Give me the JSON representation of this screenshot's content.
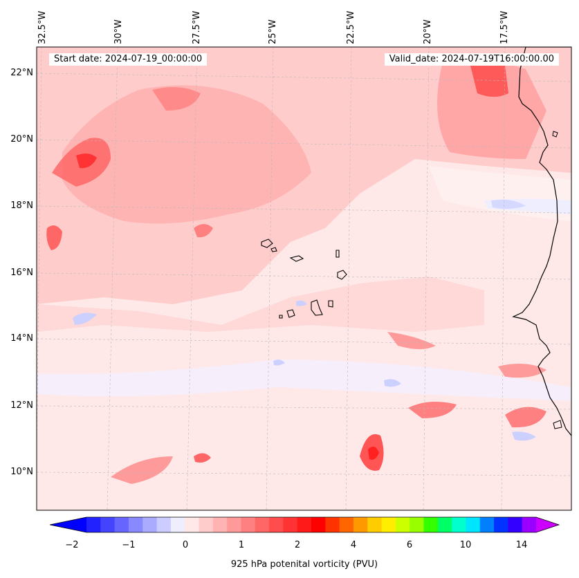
{
  "header": {
    "start_date": "Start date: 2024-07-19_00:00:00",
    "valid_date": "Valid_date: 2024-07-19T16:00:00.00"
  },
  "map": {
    "region": "Eastern tropical Atlantic off West Africa",
    "lon_labels": [
      "32.5°W",
      "30°W",
      "27.5°W",
      "25°W",
      "22.5°W",
      "20°W",
      "17.5°W"
    ],
    "lat_labels": [
      "22°N",
      "20°N",
      "18°N",
      "16°N",
      "14°N",
      "12°N",
      "10°N"
    ],
    "features": [
      "Cape Verde islands",
      "West African coastline"
    ],
    "colors": {
      "near_zero": "#ffe8e8",
      "low_pos": "#ffcccc",
      "mid_pos": "#ff9a9a",
      "high_pos": "#ff4444",
      "neg": "#eeeeff",
      "neg_strong": "#ccd0ff"
    }
  },
  "colorbar": {
    "label": "925 hPa potenital vorticity (PVU)",
    "ticks": [
      "−2",
      "−1",
      "0",
      "1",
      "2",
      "4",
      "6",
      "10",
      "14"
    ],
    "colors": [
      "#0000ff",
      "#2222ff",
      "#4444ff",
      "#6666ff",
      "#8888ff",
      "#aaaaff",
      "#ccccff",
      "#eeeeff",
      "#ffe8e8",
      "#ffcccc",
      "#ffb3b3",
      "#ff9a9a",
      "#ff8080",
      "#ff6666",
      "#ff4d4d",
      "#ff3333",
      "#ff1a1a",
      "#ff0000",
      "#ff3300",
      "#ff6600",
      "#ff9900",
      "#ffcc00",
      "#ffee00",
      "#ccff00",
      "#99ff00",
      "#33ff00",
      "#00ff66",
      "#00ffcc",
      "#00e5ff",
      "#0080ff",
      "#0033ff",
      "#3300ff",
      "#9900ff",
      "#cc00ff"
    ]
  }
}
